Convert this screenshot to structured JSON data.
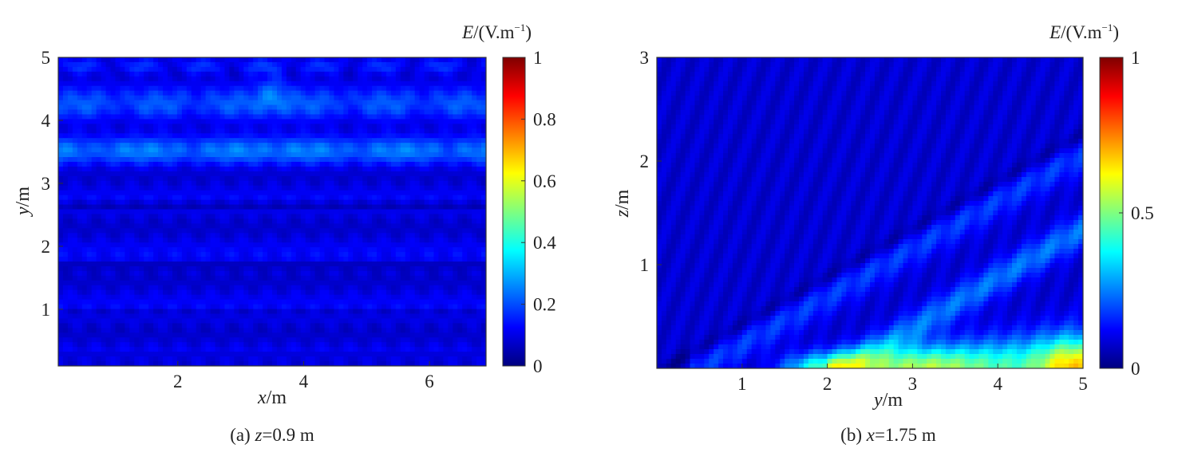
{
  "chart_data": [
    {
      "type": "heatmap",
      "caption": "(a) z=0.9 m",
      "caption_prefix": "(a) ",
      "caption_var": "z",
      "caption_value": "=0.9 m",
      "xlabel": "x/m",
      "xlabel_var": "x",
      "xlabel_unit": "/m",
      "ylabel": "y/m",
      "ylabel_var": "y",
      "ylabel_unit": "/m",
      "xlim": [
        0.1,
        6.9
      ],
      "ylim": [
        0.1,
        5.0
      ],
      "xticks": [
        2,
        4,
        6
      ],
      "yticks": [
        1,
        2,
        3,
        4,
        5
      ],
      "colorbar": {
        "title": "E/(V.m^-1)",
        "title_var": "E",
        "title_unit": "/(V.m",
        "title_exp": "−1",
        "title_close": ")",
        "range": [
          0,
          1
        ],
        "ticks": [
          "0",
          "0.2",
          "0.4",
          "0.6",
          "0.8",
          "1"
        ],
        "colormap": "jet"
      },
      "field_description": "Mostly low field (~0.05–0.15); brighter band (~0.25–0.3) near y≈3.5 and speckles near y≈4.8; darker horizontal bands at y≈2.65 and y≈1.7; symmetric about x≈3.5"
    },
    {
      "type": "heatmap",
      "caption": "(b) x=1.75 m",
      "caption_prefix": "(b) ",
      "caption_var": "x",
      "caption_value": "=1.75 m",
      "xlabel": "y/m",
      "xlabel_var": "y",
      "xlabel_unit": "/m",
      "ylabel": "z/m",
      "ylabel_var": "z",
      "ylabel_unit": "/m",
      "xlim": [
        0,
        5
      ],
      "ylim": [
        0,
        3
      ],
      "xticks": [
        1,
        2,
        3,
        4,
        5
      ],
      "yticks": [
        1,
        2,
        3
      ],
      "colorbar": {
        "title": "E/(V.m^-1)",
        "title_var": "E",
        "title_unit": "/(V.m",
        "title_exp": "−1",
        "title_close": ")",
        "range": [
          0,
          1
        ],
        "ticks": [
          "0",
          "0.5",
          "1"
        ],
        "colormap": "jet"
      },
      "field_description": "Low field in upper-left; diagonal bright streaks rising from lower-left to right; high values (~0.5–0.75) near the bottom edge, peaking at y≈4.8, z≈0.1"
    }
  ],
  "colors": {
    "jet": [
      "#00007f",
      "#0000ff",
      "#007fff",
      "#00ffff",
      "#7fff7f",
      "#ffff00",
      "#ff7f00",
      "#ff0000",
      "#7f0000"
    ]
  }
}
